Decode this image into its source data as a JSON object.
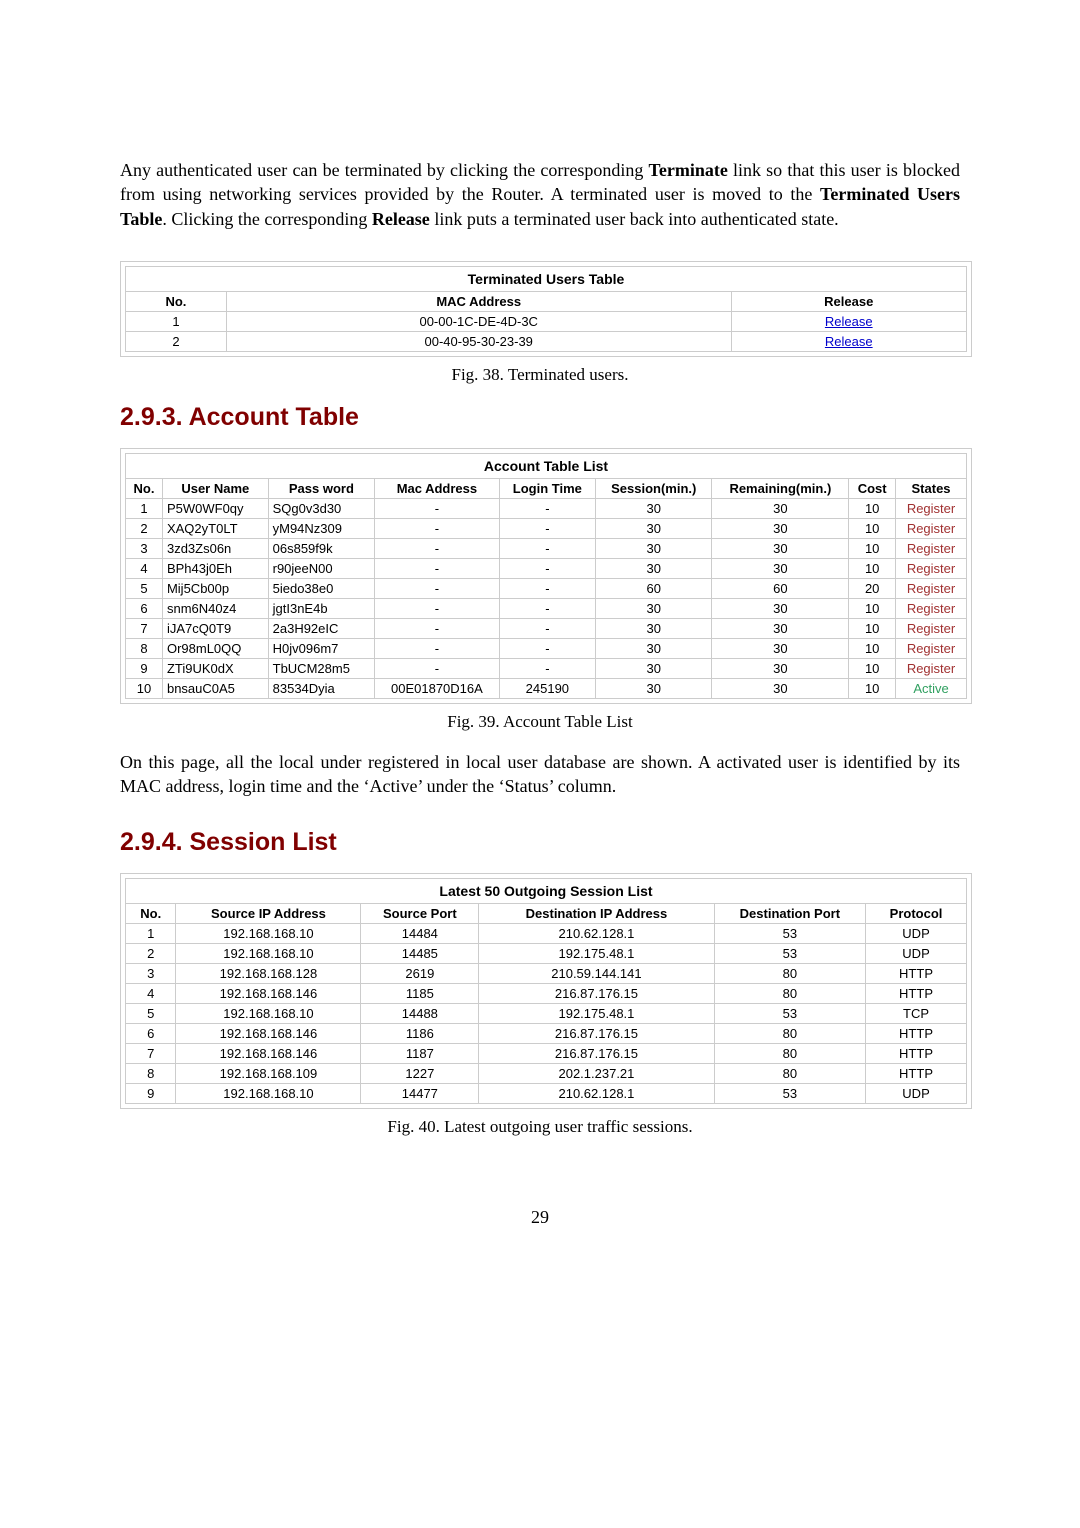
{
  "intro_paragraph_html": "Any authenticated user can be terminated by clicking the corresponding <b>Terminate</b> link so that this user is blocked from using networking services provided by the Router. A terminated user is moved to the <b>Terminated Users Table</b>. Clicking the corresponding <b>Release</b> link puts a terminated user back into authenticated state.",
  "section_293_heading": "2.9.3. Account Table",
  "section_294_heading": "2.9.4. Session List",
  "fig38": {
    "caption": "Fig. 38. Terminated users.",
    "title": "Terminated Users Table",
    "columns": [
      "No.",
      "MAC Address",
      "Release"
    ],
    "rows": [
      {
        "no": "1",
        "mac": "00-00-1C-DE-4D-3C",
        "release": "Release"
      },
      {
        "no": "2",
        "mac": "00-40-95-30-23-39",
        "release": "Release"
      }
    ]
  },
  "fig39": {
    "caption": "Fig. 39. Account Table List",
    "title": "Account Table List",
    "columns": [
      "No.",
      "User Name",
      "Pass word",
      "Mac Address",
      "Login Time",
      "Session(min.)",
      "Remaining(min.)",
      "Cost",
      "States"
    ],
    "rows": [
      {
        "no": "1",
        "user": "P5W0WF0qy",
        "pass": "SQg0v3d30",
        "mac": "-",
        "login": "-",
        "sess": "30",
        "rem": "30",
        "cost": "10",
        "state": "Register"
      },
      {
        "no": "2",
        "user": "XAQ2yT0LT",
        "pass": "yM94Nz309",
        "mac": "-",
        "login": "-",
        "sess": "30",
        "rem": "30",
        "cost": "10",
        "state": "Register"
      },
      {
        "no": "3",
        "user": "3zd3Zs06n",
        "pass": "06s859f9k",
        "mac": "-",
        "login": "-",
        "sess": "30",
        "rem": "30",
        "cost": "10",
        "state": "Register"
      },
      {
        "no": "4",
        "user": "BPh43j0Eh",
        "pass": "r90jeeN00",
        "mac": "-",
        "login": "-",
        "sess": "30",
        "rem": "30",
        "cost": "10",
        "state": "Register"
      },
      {
        "no": "5",
        "user": "Mij5Cb00p",
        "pass": "5iedo38e0",
        "mac": "-",
        "login": "-",
        "sess": "60",
        "rem": "60",
        "cost": "20",
        "state": "Register"
      },
      {
        "no": "6",
        "user": "snm6N40z4",
        "pass": "jgtI3nE4b",
        "mac": "-",
        "login": "-",
        "sess": "30",
        "rem": "30",
        "cost": "10",
        "state": "Register"
      },
      {
        "no": "7",
        "user": "iJA7cQ0T9",
        "pass": "2a3H92eIC",
        "mac": "-",
        "login": "-",
        "sess": "30",
        "rem": "30",
        "cost": "10",
        "state": "Register"
      },
      {
        "no": "8",
        "user": "Or98mL0QQ",
        "pass": "H0jv096m7",
        "mac": "-",
        "login": "-",
        "sess": "30",
        "rem": "30",
        "cost": "10",
        "state": "Register"
      },
      {
        "no": "9",
        "user": "ZTi9UK0dX",
        "pass": "TbUCM28m5",
        "mac": "-",
        "login": "-",
        "sess": "30",
        "rem": "30",
        "cost": "10",
        "state": "Register"
      },
      {
        "no": "10",
        "user": "bnsauC0A5",
        "pass": "83534Dyia",
        "mac": "00E01870D16A",
        "login": "245190",
        "sess": "30",
        "rem": "30",
        "cost": "10",
        "state": "Active"
      }
    ],
    "paragraph": "On this page, all the local under registered in local user database are shown. A activated user is identified by its MAC address, login time and the ‘Active’ under the ‘Status’ column."
  },
  "fig40": {
    "caption": "Fig. 40. Latest outgoing user traffic sessions.",
    "title": "Latest 50 Outgoing Session List",
    "columns": [
      "No.",
      "Source IP Address",
      "Source Port",
      "Destination IP Address",
      "Destination Port",
      "Protocol"
    ],
    "rows": [
      {
        "no": "1",
        "sip": "192.168.168.10",
        "sp": "14484",
        "dip": "210.62.128.1",
        "dp": "53",
        "proto": "UDP"
      },
      {
        "no": "2",
        "sip": "192.168.168.10",
        "sp": "14485",
        "dip": "192.175.48.1",
        "dp": "53",
        "proto": "UDP"
      },
      {
        "no": "3",
        "sip": "192.168.168.128",
        "sp": "2619",
        "dip": "210.59.144.141",
        "dp": "80",
        "proto": "HTTP"
      },
      {
        "no": "4",
        "sip": "192.168.168.146",
        "sp": "1185",
        "dip": "216.87.176.15",
        "dp": "80",
        "proto": "HTTP"
      },
      {
        "no": "5",
        "sip": "192.168.168.10",
        "sp": "14488",
        "dip": "192.175.48.1",
        "dp": "53",
        "proto": "TCP"
      },
      {
        "no": "6",
        "sip": "192.168.168.146",
        "sp": "1186",
        "dip": "216.87.176.15",
        "dp": "80",
        "proto": "HTTP"
      },
      {
        "no": "7",
        "sip": "192.168.168.146",
        "sp": "1187",
        "dip": "216.87.176.15",
        "dp": "80",
        "proto": "HTTP"
      },
      {
        "no": "8",
        "sip": "192.168.168.109",
        "sp": "1227",
        "dip": "202.1.237.21",
        "dp": "80",
        "proto": "HTTP"
      },
      {
        "no": "9",
        "sip": "192.168.168.10",
        "sp": "14477",
        "dip": "210.62.128.1",
        "dp": "53",
        "proto": "UDP"
      }
    ]
  },
  "page_number": "29",
  "colors": {
    "heading": "#800000",
    "link": "#0000cc",
    "state_register": "#a03030",
    "state_active": "#30a060",
    "border": "#cccccc"
  }
}
